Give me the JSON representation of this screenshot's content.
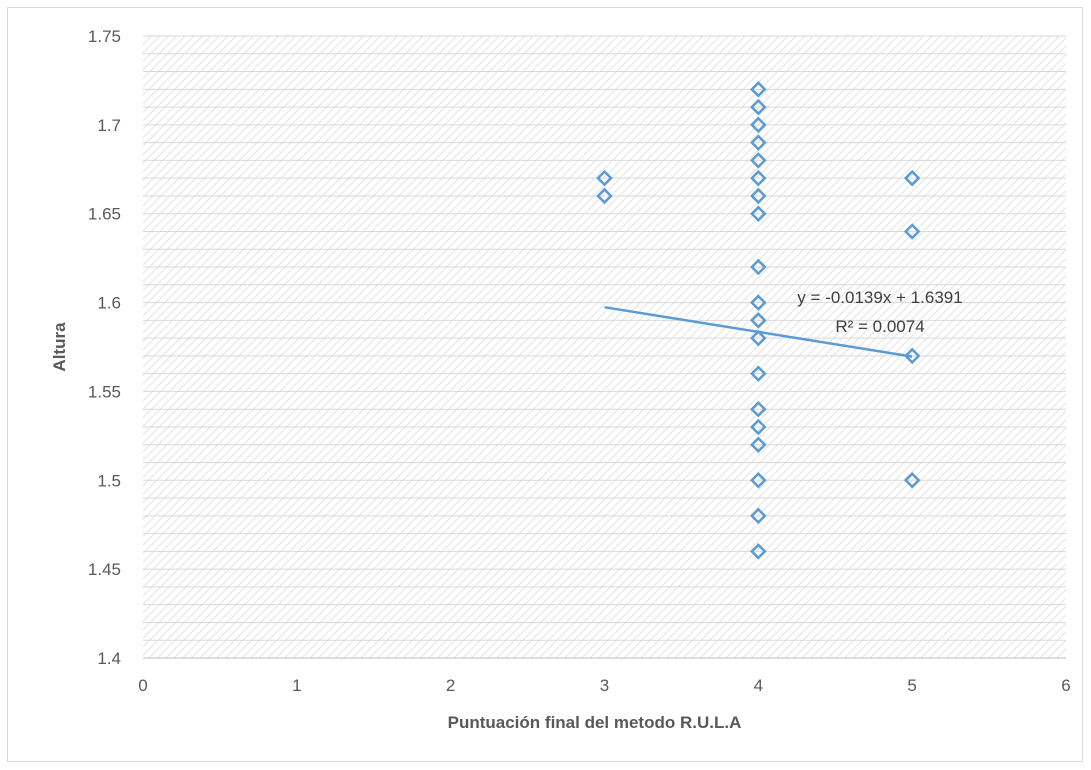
{
  "chart_data": {
    "type": "scatter",
    "title": "",
    "xlabel": "Puntuación final del metodo R.U.L.A",
    "ylabel": "Altura",
    "xlim": [
      0,
      6
    ],
    "ylim": [
      1.4,
      1.75
    ],
    "x_ticks": [
      "0",
      "1",
      "2",
      "3",
      "4",
      "5",
      "6"
    ],
    "y_ticks": [
      "1.4",
      "1.45",
      "1.5",
      "1.55",
      "1.6",
      "1.65",
      "1.7",
      "1.75"
    ],
    "grid": true,
    "marker": "diamond-open",
    "series": [
      {
        "points": [
          [
            3,
            1.67
          ],
          [
            3,
            1.66
          ],
          [
            4,
            1.72
          ],
          [
            4,
            1.71
          ],
          [
            4,
            1.7
          ],
          [
            4,
            1.69
          ],
          [
            4,
            1.68
          ],
          [
            4,
            1.67
          ],
          [
            4,
            1.66
          ],
          [
            4,
            1.65
          ],
          [
            4,
            1.62
          ],
          [
            4,
            1.6
          ],
          [
            4,
            1.59
          ],
          [
            4,
            1.58
          ],
          [
            4,
            1.56
          ],
          [
            4,
            1.54
          ],
          [
            4,
            1.53
          ],
          [
            4,
            1.52
          ],
          [
            4,
            1.5
          ],
          [
            4,
            1.48
          ],
          [
            4,
            1.46
          ],
          [
            5,
            1.67
          ],
          [
            5,
            1.64
          ],
          [
            5,
            1.57
          ],
          [
            5,
            1.5
          ]
        ]
      }
    ],
    "trendline": {
      "type": "linear",
      "slope": -0.0139,
      "intercept": 1.6391,
      "x_range": [
        3,
        5
      ],
      "equation_label": "y = -0.0139x + 1.6391",
      "r2_label": "R² = 0.0074"
    },
    "colors": {
      "marker": "#5b9bd5",
      "trendline": "#5b9bd5",
      "grid": "#d9d9d9",
      "text": "#595959"
    }
  }
}
